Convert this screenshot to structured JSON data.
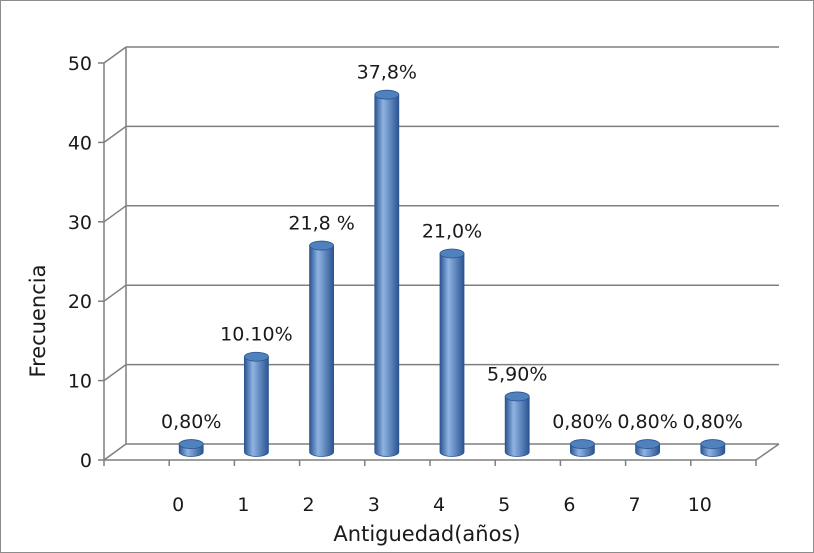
{
  "chart_data": {
    "type": "bar",
    "categories": [
      "0",
      "1",
      "2",
      "3",
      "4",
      "5",
      "6",
      "7",
      "10"
    ],
    "values": [
      1,
      12,
      26,
      45,
      25,
      7,
      1,
      1,
      1
    ],
    "data_labels": [
      "0,80%",
      "10.10%",
      "21,8 %",
      "37,8%",
      "21,0%",
      "5,90%",
      "0,80%",
      "0,80%",
      "0,80%"
    ],
    "xlabel": "Antiguedad(años)",
    "ylabel": "Frecuencia",
    "ylim": [
      0,
      50
    ],
    "yticks": [
      0,
      10,
      20,
      30,
      40,
      50
    ],
    "grid": true,
    "style": "3d-cylinder",
    "colors": {
      "bar_face": "#4f81bd",
      "bar_dark": "#2b5592",
      "bar_light": "#8fb4e3",
      "grid": "#7f7f7f"
    }
  }
}
